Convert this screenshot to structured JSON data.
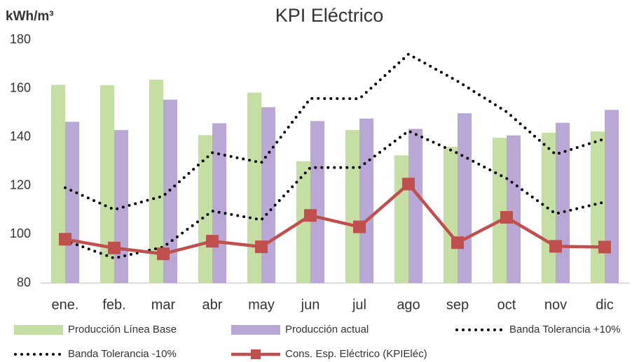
{
  "chart_data": {
    "type": "bar_line",
    "title": "KPI Eléctrico",
    "y_label": "kWh/m³",
    "categories": [
      "ene.",
      "feb.",
      "mar",
      "abr",
      "may",
      "jun",
      "jul",
      "ago",
      "sep",
      "oct",
      "nov",
      "dic"
    ],
    "ylim": [
      80,
      180
    ],
    "yticks": [
      80,
      100,
      120,
      140,
      160,
      180
    ],
    "grid": false,
    "legend": "bottom",
    "series": [
      {
        "name": "Producción Línea Base",
        "kind": "bar",
        "color": "#c5dea4",
        "values": [
          161.5,
          161.3,
          163.6,
          140.8,
          158.3,
          130.1,
          142.9,
          132.5,
          136,
          139.7,
          141.8,
          142.3
        ]
      },
      {
        "name": "Producción actual",
        "kind": "bar",
        "color": "#b9a8d6",
        "values": [
          146.3,
          142.9,
          155.4,
          145.7,
          152.3,
          146.6,
          147.6,
          143.4,
          149.8,
          140.7,
          145.9,
          151.2
        ]
      },
      {
        "name": "Banda Tolerancia +10%",
        "kind": "dotted",
        "color": "#000000",
        "values": [
          119.2,
          110.2,
          115.8,
          133.6,
          129.5,
          155.9,
          155.8,
          174.1,
          163,
          150.4,
          132.9,
          139.3
        ]
      },
      {
        "name": "Banda Tolerancia -10%",
        "kind": "dotted",
        "color": "#000000",
        "values": [
          97.5,
          90.2,
          94.8,
          109.6,
          106,
          127.5,
          127.5,
          142.5,
          133.4,
          123,
          108.5,
          113.3
        ]
      },
      {
        "name": "Cons. Esp. Eléctrico (KPIEléc)",
        "kind": "line",
        "color": "#c0504d",
        "values": [
          98,
          94.4,
          92,
          97.2,
          94.9,
          107.8,
          103.1,
          120.7,
          96.6,
          107,
          95.1,
          94.8
        ]
      }
    ]
  }
}
